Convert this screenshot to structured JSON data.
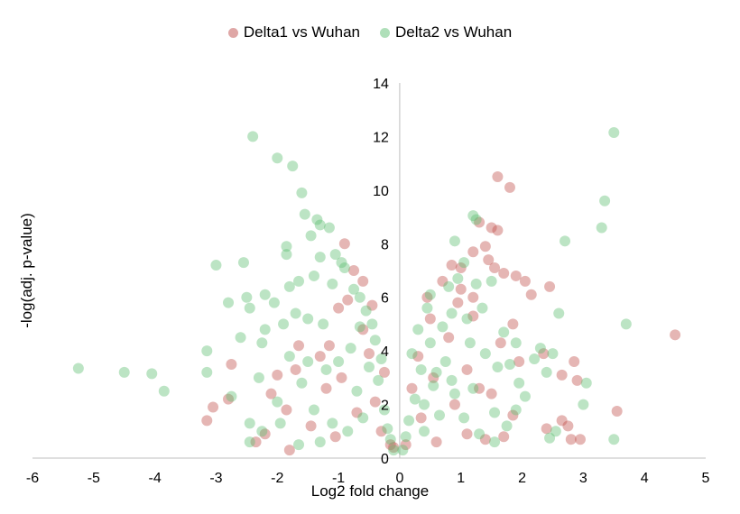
{
  "chart_data": {
    "type": "scatter",
    "title": "",
    "xlabel": "Log2 fold change",
    "ylabel": "-log(adj. p-value)",
    "xlim": [
      -6,
      5
    ],
    "ylim": [
      0,
      14
    ],
    "x_ticks": [
      "-6",
      "-5",
      "-4",
      "-3",
      "-2",
      "-1",
      "0",
      "1",
      "2",
      "3",
      "4",
      "5"
    ],
    "y_ticks": [
      "0",
      "2",
      "4",
      "6",
      "8",
      "10",
      "12",
      "14"
    ],
    "legend_position": "top",
    "grid": false,
    "series": [
      {
        "name": "Delta1 vs Wuhan",
        "color": "#c0504d",
        "points": [
          [
            4.5,
            4.6
          ],
          [
            3.55,
            1.75
          ],
          [
            1.6,
            10.5
          ],
          [
            1.8,
            10.1
          ],
          [
            1.9,
            6.8
          ],
          [
            1.7,
            6.9
          ],
          [
            2.05,
            6.6
          ],
          [
            2.15,
            6.1
          ],
          [
            2.45,
            6.4
          ],
          [
            1.3,
            8.8
          ],
          [
            1.5,
            8.6
          ],
          [
            1.6,
            8.5
          ],
          [
            1.4,
            7.9
          ],
          [
            1.2,
            7.7
          ],
          [
            1.0,
            7.1
          ],
          [
            0.85,
            7.2
          ],
          [
            0.7,
            6.6
          ],
          [
            1.45,
            7.4
          ],
          [
            1.55,
            7.1
          ],
          [
            1.0,
            6.3
          ],
          [
            1.2,
            6.0
          ],
          [
            1.85,
            5.0
          ],
          [
            1.65,
            4.3
          ],
          [
            1.95,
            3.6
          ],
          [
            2.35,
            3.9
          ],
          [
            2.65,
            3.1
          ],
          [
            2.85,
            3.6
          ],
          [
            2.9,
            2.9
          ],
          [
            2.75,
            1.2
          ],
          [
            2.8,
            0.7
          ],
          [
            2.95,
            0.7
          ],
          [
            2.65,
            1.4
          ],
          [
            2.4,
            1.1
          ],
          [
            1.85,
            1.6
          ],
          [
            1.5,
            2.4
          ],
          [
            1.3,
            2.6
          ],
          [
            1.1,
            3.3
          ],
          [
            0.9,
            2.0
          ],
          [
            0.55,
            3.0
          ],
          [
            0.35,
            1.5
          ],
          [
            0.6,
            0.6
          ],
          [
            1.1,
            0.9
          ],
          [
            1.4,
            0.7
          ],
          [
            1.7,
            0.8
          ],
          [
            0.8,
            4.5
          ],
          [
            0.5,
            5.2
          ],
          [
            0.3,
            3.8
          ],
          [
            0.2,
            2.6
          ],
          [
            0.45,
            6.0
          ],
          [
            1.2,
            5.3
          ],
          [
            0.95,
            5.8
          ],
          [
            -0.9,
            8.0
          ],
          [
            -0.75,
            7.0
          ],
          [
            -0.6,
            6.6
          ],
          [
            -0.85,
            5.9
          ],
          [
            -1.0,
            5.6
          ],
          [
            -0.45,
            5.7
          ],
          [
            -0.6,
            4.8
          ],
          [
            -1.15,
            4.2
          ],
          [
            -1.3,
            3.8
          ],
          [
            -1.7,
            3.3
          ],
          [
            -2.0,
            3.1
          ],
          [
            -2.75,
            3.5
          ],
          [
            -2.8,
            2.2
          ],
          [
            -3.05,
            1.9
          ],
          [
            -3.15,
            1.4
          ],
          [
            -2.2,
            0.9
          ],
          [
            -2.35,
            0.6
          ],
          [
            -1.8,
            0.3
          ],
          [
            -1.45,
            1.2
          ],
          [
            -1.05,
            0.8
          ],
          [
            -0.7,
            1.7
          ],
          [
            -0.4,
            2.1
          ],
          [
            -0.25,
            3.2
          ],
          [
            -0.5,
            3.9
          ],
          [
            -0.3,
            1.0
          ],
          [
            -0.15,
            0.5
          ],
          [
            -1.65,
            4.2
          ],
          [
            -1.2,
            2.6
          ],
          [
            -0.95,
            3.0
          ],
          [
            -1.85,
            1.8
          ],
          [
            -2.1,
            2.4
          ],
          [
            0.1,
            0.5
          ],
          [
            -0.1,
            0.4
          ]
        ]
      },
      {
        "name": "Delta2 vs Wuhan",
        "color": "#5fbf73",
        "points": [
          [
            -5.25,
            3.35
          ],
          [
            -4.5,
            3.2
          ],
          [
            -4.05,
            3.15
          ],
          [
            -3.85,
            2.5
          ],
          [
            -3.15,
            4.0
          ],
          [
            -3.15,
            3.2
          ],
          [
            -3.0,
            7.2
          ],
          [
            -2.8,
            5.8
          ],
          [
            -2.6,
            4.5
          ],
          [
            -2.55,
            7.3
          ],
          [
            -2.5,
            6.0
          ],
          [
            -2.45,
            5.6
          ],
          [
            -2.4,
            12.0
          ],
          [
            -2.25,
            4.3
          ],
          [
            -2.2,
            6.1
          ],
          [
            -2.0,
            11.2
          ],
          [
            -1.9,
            5.0
          ],
          [
            -1.85,
            7.9
          ],
          [
            -1.85,
            7.6
          ],
          [
            -1.75,
            10.9
          ],
          [
            -1.6,
            9.9
          ],
          [
            -1.55,
            9.1
          ],
          [
            -1.45,
            8.3
          ],
          [
            -1.35,
            8.9
          ],
          [
            -1.3,
            8.7
          ],
          [
            -1.15,
            8.6
          ],
          [
            -1.3,
            7.5
          ],
          [
            -1.05,
            7.6
          ],
          [
            -0.95,
            7.3
          ],
          [
            -0.9,
            7.1
          ],
          [
            -1.4,
            6.8
          ],
          [
            -1.1,
            6.5
          ],
          [
            -0.75,
            6.3
          ],
          [
            -1.65,
            6.6
          ],
          [
            -1.8,
            6.4
          ],
          [
            -2.05,
            5.8
          ],
          [
            -2.2,
            4.8
          ],
          [
            -1.7,
            5.4
          ],
          [
            -1.5,
            5.2
          ],
          [
            -1.25,
            5.0
          ],
          [
            -0.65,
            6.0
          ],
          [
            -0.55,
            5.5
          ],
          [
            -2.45,
            1.3
          ],
          [
            -2.25,
            1.0
          ],
          [
            -1.95,
            1.3
          ],
          [
            -2.45,
            0.6
          ],
          [
            -1.65,
            0.5
          ],
          [
            -1.3,
            0.6
          ],
          [
            -2.75,
            2.3
          ],
          [
            -2.3,
            3.0
          ],
          [
            -2.0,
            2.1
          ],
          [
            -1.6,
            2.8
          ],
          [
            -1.4,
            1.8
          ],
          [
            -1.1,
            1.3
          ],
          [
            -0.85,
            1.0
          ],
          [
            -0.7,
            2.5
          ],
          [
            -0.5,
            3.4
          ],
          [
            -0.4,
            4.4
          ],
          [
            -0.35,
            2.9
          ],
          [
            -0.25,
            1.8
          ],
          [
            -0.2,
            1.1
          ],
          [
            -0.15,
            0.7
          ],
          [
            -0.1,
            0.3
          ],
          [
            -0.65,
            4.9
          ],
          [
            -0.8,
            4.1
          ],
          [
            -1.0,
            3.6
          ],
          [
            -1.2,
            3.3
          ],
          [
            -1.5,
            3.6
          ],
          [
            -1.8,
            3.8
          ],
          [
            -0.45,
            5.0
          ],
          [
            -0.3,
            3.7
          ],
          [
            -0.6,
            1.5
          ],
          [
            3.5,
            12.15
          ],
          [
            3.35,
            9.6
          ],
          [
            3.3,
            8.6
          ],
          [
            2.7,
            8.1
          ],
          [
            3.7,
            5.0
          ],
          [
            2.6,
            5.4
          ],
          [
            2.3,
            4.1
          ],
          [
            2.5,
            3.9
          ],
          [
            2.4,
            3.2
          ],
          [
            3.05,
            2.8
          ],
          [
            3.0,
            2.0
          ],
          [
            3.5,
            0.7
          ],
          [
            2.55,
            1.0
          ],
          [
            2.45,
            0.75
          ],
          [
            1.95,
            2.8
          ],
          [
            1.9,
            1.8
          ],
          [
            1.75,
            1.2
          ],
          [
            1.55,
            1.7
          ],
          [
            1.2,
            9.05
          ],
          [
            1.25,
            8.9
          ],
          [
            0.9,
            8.1
          ],
          [
            1.05,
            7.3
          ],
          [
            0.95,
            6.7
          ],
          [
            0.8,
            6.4
          ],
          [
            0.5,
            6.1
          ],
          [
            1.25,
            6.5
          ],
          [
            1.5,
            6.6
          ],
          [
            1.35,
            5.6
          ],
          [
            1.1,
            5.2
          ],
          [
            0.85,
            5.4
          ],
          [
            1.7,
            4.7
          ],
          [
            1.6,
            3.4
          ],
          [
            1.4,
            3.9
          ],
          [
            1.15,
            4.3
          ],
          [
            0.7,
            4.9
          ],
          [
            0.5,
            4.3
          ],
          [
            0.35,
            3.3
          ],
          [
            0.25,
            2.2
          ],
          [
            0.15,
            1.4
          ],
          [
            0.1,
            0.8
          ],
          [
            0.05,
            0.3
          ],
          [
            0.4,
            1.0
          ],
          [
            0.65,
            1.6
          ],
          [
            0.9,
            2.4
          ],
          [
            1.05,
            1.5
          ],
          [
            1.3,
            0.9
          ],
          [
            1.55,
            0.6
          ],
          [
            0.55,
            2.7
          ],
          [
            0.75,
            3.6
          ],
          [
            0.3,
            4.8
          ],
          [
            0.2,
            3.9
          ],
          [
            0.45,
            5.6
          ],
          [
            1.8,
            3.5
          ],
          [
            2.05,
            2.3
          ],
          [
            2.2,
            3.7
          ],
          [
            1.9,
            4.3
          ],
          [
            0.6,
            3.2
          ],
          [
            0.85,
            2.9
          ],
          [
            1.2,
            2.6
          ],
          [
            0.4,
            2.0
          ]
        ]
      }
    ]
  }
}
